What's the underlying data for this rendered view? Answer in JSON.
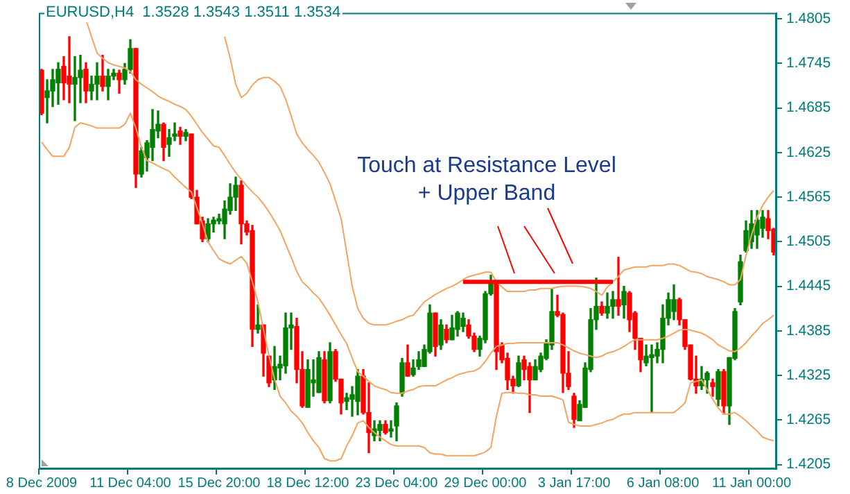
{
  "chart_data": {
    "type": "candlestick",
    "title": "EURUSD,H4  1.3528 1.3543 1.3511 1.3534",
    "categories": [
      "8 Dec 2009",
      null,
      null,
      null,
      null,
      null,
      null,
      null,
      null,
      null,
      null,
      null,
      null,
      null,
      null,
      null,
      "11 Dec 04:00",
      null,
      null,
      null,
      null,
      null,
      null,
      null,
      null,
      null,
      null,
      null,
      null,
      null,
      null,
      null,
      "15 Dec 20:00",
      null,
      null,
      null,
      null,
      null,
      null,
      null,
      null,
      null,
      null,
      null,
      null,
      null,
      null,
      null,
      "18 Dec 12:00",
      null,
      null,
      null,
      null,
      null,
      null,
      null,
      null,
      null,
      null,
      null,
      null,
      null,
      null,
      null,
      "23 Dec 04:00",
      null,
      null,
      null,
      null,
      null,
      null,
      null,
      null,
      null,
      null,
      null,
      null,
      null,
      null,
      null,
      "29 Dec 00:00",
      null,
      null,
      null,
      null,
      null,
      null,
      null,
      null,
      null,
      null,
      null,
      null,
      null,
      null,
      null,
      "3 Jan 17:00",
      null,
      null,
      null,
      null,
      null,
      null,
      null,
      null,
      null,
      null,
      null,
      null,
      null,
      null,
      null,
      "6 Jan 08:00",
      null,
      null,
      null,
      null,
      null,
      null,
      null,
      null,
      null,
      null,
      null,
      null,
      null,
      null,
      null,
      "11 Jan 00:00",
      null,
      null,
      null,
      null
    ],
    "ohlc": [
      [
        1.4736,
        1.4737,
        1.4676,
        1.4678
      ],
      [
        1.4699,
        1.4723,
        1.4665,
        1.4708
      ],
      [
        1.4708,
        1.4737,
        1.4687,
        1.4723
      ],
      [
        1.4719,
        1.4746,
        1.469,
        1.4737
      ],
      [
        1.4741,
        1.4754,
        1.4696,
        1.4719
      ],
      [
        1.4728,
        1.4781,
        1.4692,
        1.4717
      ],
      [
        1.4717,
        1.4754,
        1.4668,
        1.4726
      ],
      [
        1.4726,
        1.4756,
        1.4692,
        1.4736
      ],
      [
        1.4737,
        1.4746,
        1.4692,
        1.4708
      ],
      [
        1.4708,
        1.4728,
        1.4696,
        1.4717
      ],
      [
        1.4717,
        1.4746,
        1.4696,
        1.4728
      ],
      [
        1.4728,
        1.4756,
        1.4708,
        1.4714
      ],
      [
        1.4714,
        1.4737,
        1.4696,
        1.4728
      ],
      [
        1.4728,
        1.4737,
        1.4723,
        1.4732
      ],
      [
        1.4732,
        1.4736,
        1.4705,
        1.4723
      ],
      [
        1.4723,
        1.4745,
        1.4717,
        1.4737
      ],
      [
        1.4737,
        1.4777,
        1.4732,
        1.4765
      ],
      [
        1.4765,
        1.4765,
        1.4578,
        1.4596
      ],
      [
        1.4596,
        1.4632,
        1.4592,
        1.4627
      ],
      [
        1.4618,
        1.4641,
        1.46,
        1.4638
      ],
      [
        1.4632,
        1.4683,
        1.4614,
        1.4656
      ],
      [
        1.4654,
        1.4681,
        1.4645,
        1.4663
      ],
      [
        1.4663,
        1.4665,
        1.4614,
        1.4632
      ],
      [
        1.4636,
        1.4656,
        1.462,
        1.4645
      ],
      [
        1.4647,
        1.4665,
        1.4641,
        1.465
      ],
      [
        1.4654,
        1.4659,
        1.4636,
        1.4647
      ],
      [
        1.4647,
        1.4656,
        1.4641,
        1.4652
      ],
      [
        1.465,
        1.465,
        1.4563,
        1.4565
      ],
      [
        1.4565,
        1.4574,
        1.4529,
        1.4529
      ],
      [
        1.4533,
        1.4538,
        1.4505,
        1.4509
      ],
      [
        1.4509,
        1.4536,
        1.4505,
        1.4529
      ],
      [
        1.4529,
        1.4538,
        1.4518,
        1.4534
      ],
      [
        1.4533,
        1.4542,
        1.4529,
        1.4536
      ],
      [
        1.4529,
        1.456,
        1.4509,
        1.4549
      ],
      [
        1.4547,
        1.4583,
        1.4542,
        1.4565
      ],
      [
        1.4565,
        1.4592,
        1.4547,
        1.4581
      ],
      [
        1.4581,
        1.4587,
        1.4502,
        1.4529
      ],
      [
        1.4529,
        1.4533,
        1.4514,
        1.4518
      ],
      [
        1.452,
        1.4527,
        1.4364,
        1.4387
      ],
      [
        1.4387,
        1.442,
        1.4382,
        1.4393
      ],
      [
        1.4393,
        1.4393,
        1.4324,
        1.4355
      ],
      [
        1.4351,
        1.4351,
        1.431,
        1.4315
      ],
      [
        1.4319,
        1.4364,
        1.4306,
        1.4337
      ],
      [
        1.4335,
        1.4351,
        1.4319,
        1.434
      ],
      [
        1.4338,
        1.4409,
        1.4328,
        1.4389
      ],
      [
        1.4389,
        1.4409,
        1.436,
        1.4393
      ],
      [
        1.4391,
        1.4402,
        1.4315,
        1.4333
      ],
      [
        1.4333,
        1.4357,
        1.4282,
        1.4284
      ],
      [
        1.4282,
        1.4346,
        1.4282,
        1.4333
      ],
      [
        1.4315,
        1.4346,
        1.4297,
        1.4319
      ],
      [
        1.4302,
        1.4357,
        1.4302,
        1.4349
      ],
      [
        1.4346,
        1.4357,
        1.4288,
        1.4291
      ],
      [
        1.4291,
        1.4369,
        1.4288,
        1.4357
      ],
      [
        1.4357,
        1.436,
        1.4317,
        1.432
      ],
      [
        1.432,
        1.432,
        1.4273,
        1.4288
      ],
      [
        1.429,
        1.4301,
        1.4279,
        1.4295
      ],
      [
        1.4293,
        1.431,
        1.427,
        1.4299
      ],
      [
        1.429,
        1.4333,
        1.4272,
        1.4324
      ],
      [
        1.4324,
        1.4333,
        1.4273,
        1.4275
      ],
      [
        1.4275,
        1.4315,
        1.4221,
        1.4248
      ],
      [
        1.4244,
        1.4264,
        1.4237,
        1.4253
      ],
      [
        1.4251,
        1.4264,
        1.4237,
        1.4259
      ],
      [
        1.4259,
        1.4264,
        1.4246,
        1.4248
      ],
      [
        1.425,
        1.4264,
        1.4242,
        1.4253
      ],
      [
        1.4257,
        1.4288,
        1.4237,
        1.4284
      ],
      [
        1.4301,
        1.4348,
        1.4297,
        1.4342
      ],
      [
        1.4342,
        1.4366,
        1.4324,
        1.4324
      ],
      [
        1.4326,
        1.4346,
        1.4324,
        1.4335
      ],
      [
        1.4337,
        1.4357,
        1.4333,
        1.4346
      ],
      [
        1.4337,
        1.4366,
        1.4337,
        1.436
      ],
      [
        1.4357,
        1.442,
        1.4355,
        1.4409
      ],
      [
        1.4409,
        1.4409,
        1.4351,
        1.4364
      ],
      [
        1.4366,
        1.44,
        1.436,
        1.4393
      ],
      [
        1.4387,
        1.4393,
        1.4369,
        1.4373
      ],
      [
        1.4373,
        1.4406,
        1.4373,
        1.4389
      ],
      [
        1.4387,
        1.4411,
        1.4378,
        1.4409
      ],
      [
        1.4391,
        1.4409,
        1.4384,
        1.4402
      ],
      [
        1.4393,
        1.44,
        1.4375,
        1.4378
      ],
      [
        1.4378,
        1.4382,
        1.4357,
        1.436
      ],
      [
        1.436,
        1.4378,
        1.4351,
        1.4375
      ],
      [
        1.4373,
        1.4438,
        1.4369,
        1.4435
      ],
      [
        1.4435,
        1.446,
        1.4433,
        1.4451
      ],
      [
        1.4451,
        1.4451,
        1.4333,
        1.4357
      ],
      [
        1.4366,
        1.4369,
        1.4342,
        1.4346
      ],
      [
        1.4348,
        1.4355,
        1.4306,
        1.4319
      ],
      [
        1.432,
        1.4324,
        1.4301,
        1.4311
      ],
      [
        1.4311,
        1.4351,
        1.431,
        1.4342
      ],
      [
        1.4346,
        1.4351,
        1.4319,
        1.4333
      ],
      [
        1.4337,
        1.4342,
        1.4275,
        1.4319
      ],
      [
        1.4319,
        1.4346,
        1.4319,
        1.4337
      ],
      [
        1.4333,
        1.4355,
        1.433,
        1.4351
      ],
      [
        1.4348,
        1.4373,
        1.4346,
        1.4369
      ],
      [
        1.4366,
        1.4442,
        1.436,
        1.4411
      ],
      [
        1.4411,
        1.4433,
        1.4404,
        1.4406
      ],
      [
        1.4407,
        1.4409,
        1.4302,
        1.4328
      ],
      [
        1.4328,
        1.4357,
        1.4306,
        1.431
      ],
      [
        1.4297,
        1.4301,
        1.4255,
        1.4266
      ],
      [
        1.4264,
        1.4291,
        1.4264,
        1.4286
      ],
      [
        1.4282,
        1.4342,
        1.4282,
        1.4335
      ],
      [
        1.4333,
        1.4415,
        1.433,
        1.44
      ],
      [
        1.44,
        1.4456,
        1.4387,
        1.4418
      ],
      [
        1.4418,
        1.4424,
        1.4406,
        1.4409
      ],
      [
        1.4409,
        1.4436,
        1.4402,
        1.4418
      ],
      [
        1.4418,
        1.4438,
        1.4402,
        1.4427
      ],
      [
        1.4427,
        1.4484,
        1.4406,
        1.4418
      ],
      [
        1.442,
        1.4445,
        1.4402,
        1.4438
      ],
      [
        1.4436,
        1.4438,
        1.4384,
        1.44
      ],
      [
        1.4409,
        1.4411,
        1.436,
        1.4375
      ],
      [
        1.4375,
        1.4375,
        1.433,
        1.4346
      ],
      [
        1.4342,
        1.4366,
        1.4338,
        1.4351
      ],
      [
        1.4349,
        1.4366,
        1.4275,
        1.4353
      ],
      [
        1.4351,
        1.4369,
        1.4342,
        1.436
      ],
      [
        1.436,
        1.442,
        1.4342,
        1.4402
      ],
      [
        1.4402,
        1.4436,
        1.4393,
        1.4427
      ],
      [
        1.4411,
        1.4447,
        1.44,
        1.4427
      ],
      [
        1.4427,
        1.4429,
        1.4393,
        1.44
      ],
      [
        1.44,
        1.44,
        1.436,
        1.4364
      ],
      [
        1.4366,
        1.4366,
        1.4319,
        1.432
      ],
      [
        1.432,
        1.4351,
        1.4301,
        1.4311
      ],
      [
        1.4311,
        1.4337,
        1.4306,
        1.432
      ],
      [
        1.4319,
        1.433,
        1.4301,
        1.4328
      ],
      [
        1.4315,
        1.432,
        1.4297,
        1.431
      ],
      [
        1.4293,
        1.4333,
        1.4284,
        1.433
      ],
      [
        1.433,
        1.4333,
        1.4273,
        1.4284
      ],
      [
        1.4284,
        1.4349,
        1.4259,
        1.4349
      ],
      [
        1.4348,
        1.4415,
        1.4346,
        1.4411
      ],
      [
        1.4424,
        1.4487,
        1.442,
        1.4478
      ],
      [
        1.4493,
        1.4533,
        1.4491,
        1.452
      ],
      [
        1.4505,
        1.4547,
        1.4496,
        1.4529
      ],
      [
        1.4514,
        1.4547,
        1.4496,
        1.4534
      ],
      [
        1.4523,
        1.4547,
        1.4511,
        1.4538
      ],
      [
        1.4536,
        1.4547,
        1.4509,
        1.452
      ],
      [
        1.4522,
        1.4523,
        1.4487,
        1.4491
      ]
    ],
    "colors": [
      "#ff0000",
      "#008000",
      "#008000",
      "#008000",
      "#ff0000",
      "#ff0000",
      "#008000",
      "#008000",
      "#ff0000",
      "#008000",
      "#008000",
      "#ff0000",
      "#008000",
      "#008000",
      "#ff0000",
      "#008000",
      "#008000",
      "#ff0000",
      "#008000",
      "#008000",
      "#008000",
      "#008000",
      "#ff0000",
      "#008000",
      "#008000",
      "#ff0000",
      "#008000",
      "#ff0000",
      "#ff0000",
      "#ff0000",
      "#008000",
      "#008000",
      "#008000",
      "#008000",
      "#008000",
      "#008000",
      "#ff0000",
      "#ff0000",
      "#ff0000",
      "#008000",
      "#ff0000",
      "#ff0000",
      "#008000",
      "#008000",
      "#008000",
      "#008000",
      "#ff0000",
      "#ff0000",
      "#008000",
      "#008000",
      "#008000",
      "#ff0000",
      "#008000",
      "#ff0000",
      "#ff0000",
      "#008000",
      "#008000",
      "#008000",
      "#ff0000",
      "#ff0000",
      "#008000",
      "#008000",
      "#ff0000",
      "#008000",
      "#008000",
      "#008000",
      "#ff0000",
      "#008000",
      "#008000",
      "#008000",
      "#008000",
      "#ff0000",
      "#008000",
      "#ff0000",
      "#008000",
      "#008000",
      "#008000",
      "#ff0000",
      "#ff0000",
      "#008000",
      "#008000",
      "#008000",
      "#ff0000",
      "#ff0000",
      "#ff0000",
      "#ff0000",
      "#008000",
      "#ff0000",
      "#ff0000",
      "#008000",
      "#008000",
      "#008000",
      "#008000",
      "#ff0000",
      "#ff0000",
      "#ff0000",
      "#ff0000",
      "#008000",
      "#008000",
      "#008000",
      "#008000",
      "#ff0000",
      "#008000",
      "#008000",
      "#ff0000",
      "#008000",
      "#ff0000",
      "#ff0000",
      "#ff0000",
      "#008000",
      "#008000",
      "#008000",
      "#008000",
      "#008000",
      "#008000",
      "#ff0000",
      "#ff0000",
      "#ff0000",
      "#ff0000",
      "#008000",
      "#008000",
      "#ff0000",
      "#008000",
      "#ff0000",
      "#008000",
      "#008000",
      "#008000",
      "#008000",
      "#008000",
      "#008000",
      "#008000",
      "#ff0000",
      "#ff0000"
    ],
    "series": [
      {
        "type": "line",
        "color": "#f4a460",
        "values": [
          null,
          null,
          null,
          null,
          null,
          null,
          null,
          null,
          null,
          null,
          null,
          null,
          null,
          null,
          null,
          null,
          null,
          null,
          null,
          null,
          null,
          null,
          null,
          null,
          null,
          null,
          null,
          null,
          null,
          null,
          null,
          null,
          null,
          1.4781,
          1.4752,
          1.4717,
          1.4699,
          1.4705,
          1.4716,
          1.4723,
          1.4726,
          1.4726,
          1.4721,
          1.4714,
          1.4697,
          1.4674,
          1.465,
          1.4638,
          1.4629,
          1.4621,
          1.4612,
          1.4598,
          1.4583,
          1.456,
          1.4536,
          1.4491,
          1.4445,
          1.4415,
          1.4402,
          1.4395,
          1.4393,
          1.4393,
          1.4393,
          1.4395,
          1.4398,
          1.44,
          1.4404,
          1.4406,
          1.4415,
          1.4424,
          1.4429,
          1.4434,
          1.4438,
          1.4442,
          1.4445,
          1.4449,
          1.4454,
          1.4458,
          1.446,
          1.4462,
          1.4464,
          1.4464,
          1.4451,
          1.4444,
          1.4438,
          1.4438,
          1.4438,
          1.4438,
          1.444,
          1.444,
          1.4442,
          1.4442,
          1.4442,
          1.4444,
          1.4445,
          1.4445,
          1.4445,
          1.4445,
          1.4444,
          1.4442,
          1.4438,
          1.4433,
          1.4444,
          1.4451,
          1.4458,
          1.4467,
          1.4469,
          1.4471,
          1.4471,
          1.4471,
          1.4473,
          1.4473,
          1.4473,
          1.4475,
          1.4475,
          1.4473,
          1.4469,
          1.4465,
          1.4464,
          1.4462,
          1.4458,
          1.4456,
          1.4454,
          1.4451,
          1.4447,
          1.4447,
          1.4454,
          1.4487,
          1.4514,
          1.4538,
          1.4554,
          1.4565,
          1.4574
        ]
      },
      {
        "type": "line",
        "color": "#f4a460",
        "values": [
          null,
          null,
          null,
          null,
          null,
          null,
          null,
          null,
          1.4804,
          1.4781,
          1.4759,
          1.4752,
          1.4746,
          1.4743,
          1.4741,
          1.4739,
          1.4734,
          1.4723,
          1.4717,
          1.4712,
          1.4707,
          1.4701,
          1.4697,
          1.4694,
          1.469,
          1.4687,
          1.4683,
          1.4674,
          1.4663,
          1.4652,
          1.4643,
          1.4634,
          1.4632,
          1.4621,
          1.4609,
          1.4598,
          1.4589,
          1.458,
          1.4572,
          1.4565,
          1.4556,
          1.4545,
          1.4533,
          1.452,
          1.4502,
          1.4484,
          1.4465,
          1.4451,
          1.4444,
          1.4436,
          1.4429,
          1.4418,
          1.4406,
          1.4393,
          1.438,
          1.4368,
          1.4348,
          1.433,
          1.4324,
          1.4317,
          1.4311,
          1.4308,
          1.4306,
          1.4302,
          1.4301,
          1.4301,
          1.4304,
          1.4306,
          1.431,
          1.4311,
          1.4311,
          1.4311,
          1.4315,
          1.4319,
          1.4322,
          1.4326,
          1.4328,
          1.433,
          1.4331,
          1.4335,
          1.4344,
          1.4355,
          1.4364,
          1.4366,
          1.4368,
          1.4368,
          1.4369,
          1.4369,
          1.4369,
          1.4369,
          1.4369,
          1.4369,
          1.4369,
          1.4369,
          1.4366,
          1.4362,
          1.4358,
          1.4355,
          1.4353,
          1.4351,
          1.4349,
          1.4351,
          1.4355,
          1.4357,
          1.436,
          1.4364,
          1.4369,
          1.4373,
          1.4373,
          1.4373,
          1.4373,
          1.4373,
          1.4375,
          1.4378,
          1.4382,
          1.4386,
          1.4387,
          1.4386,
          1.4384,
          1.4382,
          1.4378,
          1.4373,
          1.4366,
          1.4362,
          1.4358,
          1.4357,
          1.4362,
          1.4369,
          1.4378,
          1.4386,
          1.4395,
          1.44,
          1.4406
        ]
      },
      {
        "type": "line",
        "color": "#f4a460",
        "values": [
          1.4639,
          1.4629,
          1.462,
          1.462,
          1.462,
          1.4632,
          1.4659,
          1.4665,
          1.4663,
          1.4661,
          1.4658,
          1.4658,
          1.4658,
          1.4658,
          1.4658,
          1.4663,
          1.4678,
          1.4658,
          1.4632,
          1.4614,
          1.4611,
          1.4607,
          1.4603,
          1.46,
          1.4592,
          1.4585,
          1.4578,
          1.4572,
          1.4551,
          1.4529,
          1.4505,
          1.4493,
          1.4482,
          1.4478,
          1.4475,
          1.448,
          1.4485,
          1.4476,
          1.4451,
          1.4424,
          1.4387,
          1.4351,
          1.432,
          1.4297,
          1.4288,
          1.4277,
          1.427,
          1.4261,
          1.4248,
          1.4237,
          1.4228,
          1.4213,
          1.421,
          1.421,
          1.4213,
          1.423,
          1.4244,
          1.4261,
          1.4264,
          1.4255,
          1.4248,
          1.4242,
          1.4237,
          1.4232,
          1.423,
          1.423,
          1.423,
          1.423,
          1.423,
          1.4228,
          1.4221,
          1.4219,
          1.4219,
          1.4217,
          1.4217,
          1.4217,
          1.4217,
          1.4217,
          1.4217,
          1.4219,
          1.4222,
          1.4228,
          1.427,
          1.4301,
          1.4302,
          1.4302,
          1.4301,
          1.4301,
          1.4299,
          1.4299,
          1.4297,
          1.4297,
          1.4297,
          1.4295,
          1.4292,
          1.4262,
          1.4259,
          1.4257,
          1.4257,
          1.4257,
          1.4259,
          1.4261,
          1.4264,
          1.4266,
          1.427,
          1.4273,
          1.4273,
          1.4275,
          1.4275,
          1.4275,
          1.4275,
          1.4275,
          1.4275,
          1.4275,
          1.4275,
          1.4281,
          1.4288,
          1.4315,
          1.4317,
          1.4319,
          1.4306,
          1.4293,
          1.4281,
          1.4273,
          1.4273,
          1.4275,
          1.427,
          1.4264,
          1.4257,
          1.425,
          1.4242,
          1.4239,
          1.4237
        ]
      },
      {
        "type": "line",
        "color": "#ff0000",
        "values": [
          null,
          null,
          null,
          null,
          null,
          null,
          null,
          null,
          null,
          null,
          null,
          null,
          null,
          null,
          null,
          null,
          null,
          null,
          null,
          null,
          null,
          null,
          null,
          null,
          null,
          null,
          null,
          null,
          null,
          null,
          null,
          null,
          null,
          null,
          null,
          null,
          null,
          null,
          null,
          null,
          null,
          null,
          null,
          null,
          null,
          null,
          null,
          null,
          null,
          null,
          null,
          null,
          null,
          null,
          null,
          null,
          null,
          null,
          null,
          null,
          null,
          null,
          null,
          null,
          null,
          null,
          null,
          null,
          null,
          null,
          null,
          null,
          null,
          null,
          null,
          null,
          1.4451,
          1.4451,
          1.4451,
          1.4451,
          1.4451,
          1.4451,
          1.4451,
          1.4451,
          1.4451,
          1.4451,
          1.4451,
          1.4451,
          1.4451,
          1.4451,
          1.4451,
          1.4451,
          1.4451,
          1.4451,
          1.4451,
          1.4451,
          1.4451,
          1.4451,
          1.4451,
          1.4451,
          1.4451,
          1.4451,
          1.4451,
          1.4451,
          null,
          null,
          null,
          null,
          null,
          null,
          null,
          null,
          null,
          null,
          null,
          null,
          null,
          null,
          null,
          null,
          null,
          null,
          null,
          null,
          null,
          null,
          null,
          null,
          null,
          null,
          null,
          null,
          null
        ]
      }
    ],
    "ylim": [
      1.4199,
      1.4813
    ],
    "yticks": [
      1.4205,
      1.4265,
      1.4325,
      1.4385,
      1.4445,
      1.4505,
      1.4565,
      1.4625,
      1.4685,
      1.4745,
      1.4805
    ],
    "annotations": [
      "Touch at Resistance Level\n+ Upper Band"
    ]
  }
}
